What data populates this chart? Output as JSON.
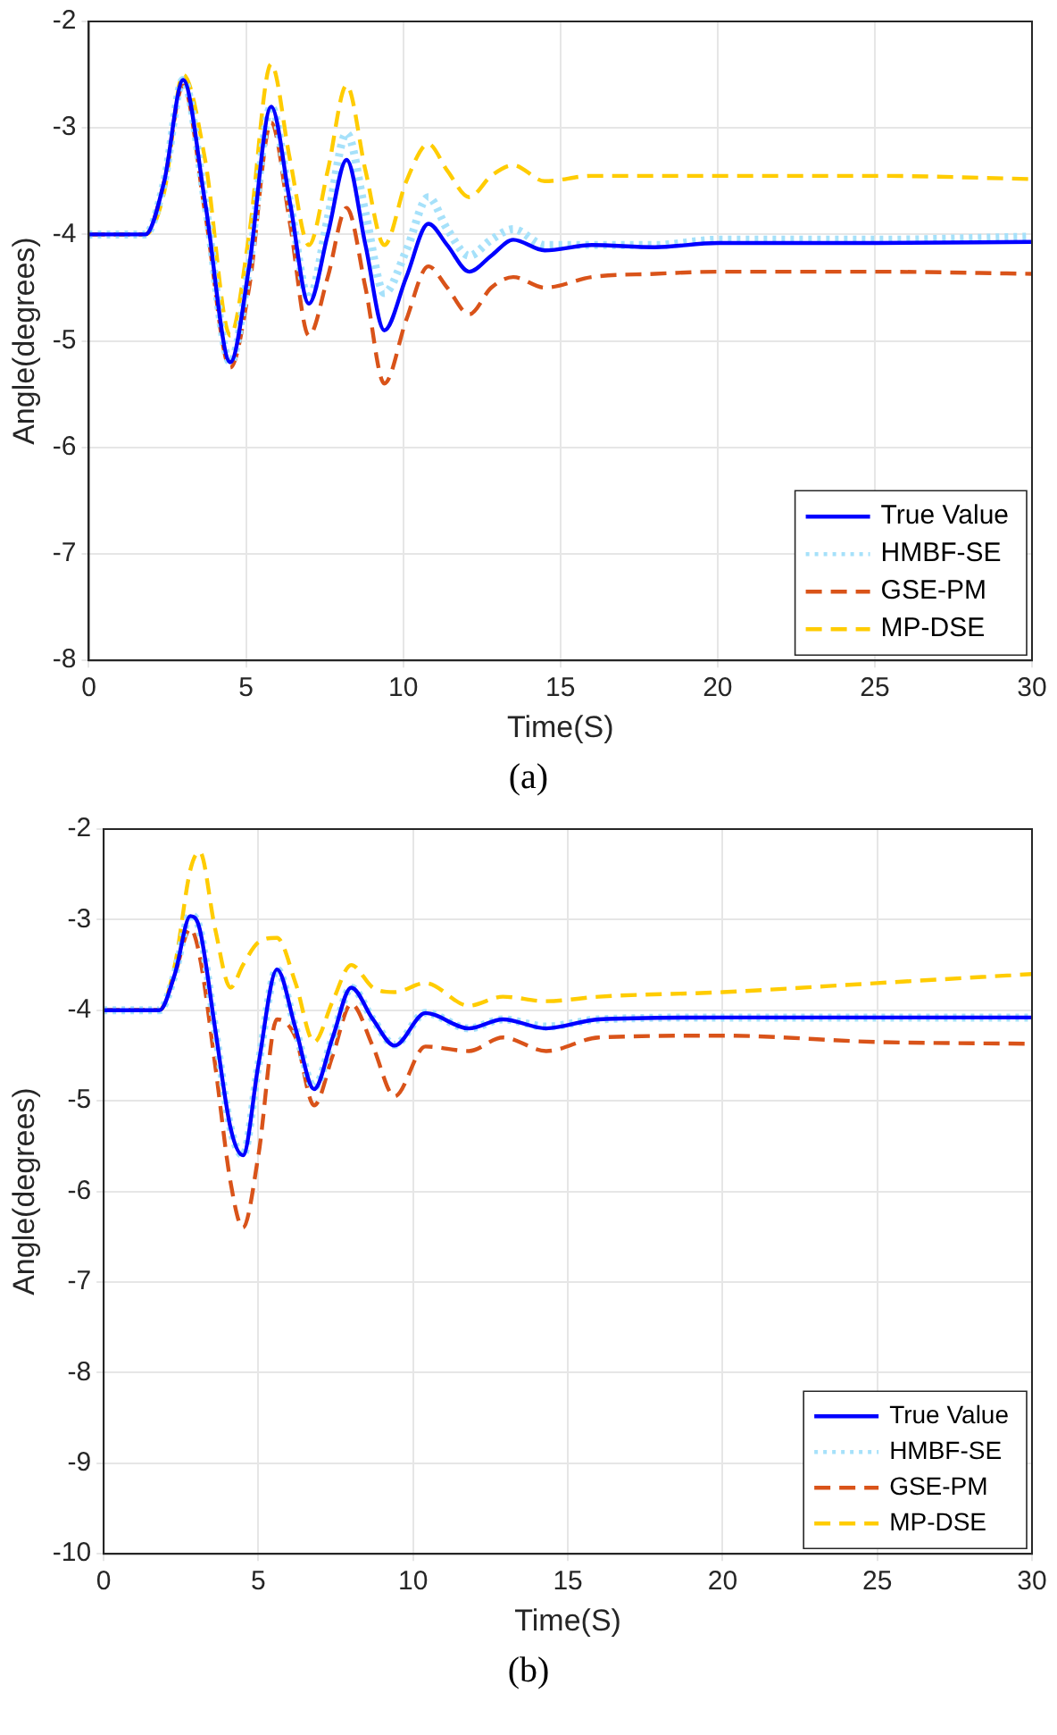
{
  "chart_data": [
    {
      "type": "line",
      "xlabel": "Time(S)",
      "ylabel": "Angle(degrees)",
      "annotations": [
        "(a)"
      ],
      "xlim": [
        0,
        30
      ],
      "xticks": [
        0,
        5,
        10,
        15,
        20,
        25,
        30
      ],
      "ylim": [
        -8,
        -2
      ],
      "yticks": [
        -8,
        -7,
        -6,
        -5,
        -4,
        -3,
        -2
      ],
      "grid": true,
      "legend": "bottom right",
      "marker": "none",
      "x": [
        0,
        1.8,
        2.4,
        3.0,
        3.7,
        4.5,
        5.1,
        5.8,
        6.4,
        7.0,
        7.6,
        8.2,
        8.8,
        9.4,
        10.1,
        10.8,
        11.4,
        12.1,
        12.8,
        13.5,
        14.5,
        16,
        18,
        20,
        25,
        30
      ],
      "series": [
        {
          "name": "True Value",
          "color": "#0000ff",
          "line_style": "solid",
          "values": [
            -4,
            -4,
            -3.5,
            -2.55,
            -3.7,
            -5.2,
            -4.3,
            -2.8,
            -3.7,
            -4.65,
            -4.0,
            -3.3,
            -4.1,
            -4.9,
            -4.4,
            -3.9,
            -4.1,
            -4.35,
            -4.2,
            -4.05,
            -4.15,
            -4.1,
            -4.12,
            -4.08,
            -4.08,
            -4.07
          ]
        },
        {
          "name": "HMBF-SE",
          "color": "#a6e1fa",
          "line_style": "dotted",
          "values": [
            -4,
            -4,
            -3.5,
            -2.55,
            -3.7,
            -5.2,
            -4.3,
            -2.8,
            -3.7,
            -4.6,
            -3.85,
            -3.05,
            -3.8,
            -4.55,
            -4.15,
            -3.65,
            -3.95,
            -4.2,
            -4.05,
            -3.95,
            -4.1,
            -4.1,
            -4.1,
            -4.05,
            -4.05,
            -4.02
          ]
        },
        {
          "name": "GSE-PM",
          "color": "#d95319",
          "line_style": "dashed",
          "values": [
            -4,
            -4,
            -3.5,
            -2.6,
            -3.8,
            -5.25,
            -4.5,
            -2.95,
            -3.9,
            -4.95,
            -4.4,
            -3.75,
            -4.5,
            -5.4,
            -4.8,
            -4.3,
            -4.5,
            -4.75,
            -4.5,
            -4.4,
            -4.5,
            -4.4,
            -4.37,
            -4.35,
            -4.35,
            -4.37
          ]
        },
        {
          "name": "MP-DSE",
          "color": "#ffcc00",
          "line_style": "dashed",
          "values": [
            -4,
            -4,
            -3.6,
            -2.5,
            -3.3,
            -4.95,
            -4.0,
            -2.4,
            -3.3,
            -4.1,
            -3.4,
            -2.6,
            -3.4,
            -4.1,
            -3.5,
            -3.15,
            -3.4,
            -3.65,
            -3.45,
            -3.35,
            -3.5,
            -3.45,
            -3.45,
            -3.45,
            -3.45,
            -3.48
          ]
        }
      ]
    },
    {
      "type": "line",
      "xlabel": "Time(S)",
      "ylabel": "Angle(degrees)",
      "annotations": [
        "(b)"
      ],
      "xlim": [
        0,
        30
      ],
      "xticks": [
        0,
        5,
        10,
        15,
        20,
        25,
        30
      ],
      "ylim": [
        -10,
        -2
      ],
      "yticks": [
        -10,
        -9,
        -8,
        -7,
        -6,
        -5,
        -4,
        -3,
        -2
      ],
      "grid": true,
      "legend": "bottom right",
      "marker": "none",
      "x": [
        0,
        1.8,
        2.3,
        2.8,
        3.1,
        3.6,
        4.1,
        4.5,
        5.0,
        5.6,
        6.2,
        6.8,
        7.4,
        8.0,
        8.7,
        9.4,
        10.4,
        11.8,
        12.9,
        14.3,
        16,
        20,
        25,
        30
      ],
      "series": [
        {
          "name": "True Value",
          "color": "#0000ff",
          "line_style": "solid",
          "values": [
            -4,
            -4,
            -3.6,
            -2.96,
            -3.1,
            -4.2,
            -5.3,
            -5.6,
            -4.6,
            -3.55,
            -4.2,
            -4.87,
            -4.3,
            -3.75,
            -4.1,
            -4.39,
            -4.03,
            -4.2,
            -4.1,
            -4.2,
            -4.1,
            -4.08,
            -4.08,
            -4.08
          ]
        },
        {
          "name": "HMBF-SE",
          "color": "#a6e1fa",
          "line_style": "dotted",
          "values": [
            -4,
            -4,
            -3.6,
            -2.95,
            -3.1,
            -4.2,
            -5.3,
            -5.6,
            -4.6,
            -3.55,
            -4.2,
            -4.85,
            -4.3,
            -3.75,
            -4.1,
            -4.38,
            -4.03,
            -4.2,
            -4.1,
            -4.18,
            -4.1,
            -4.08,
            -4.08,
            -4.08
          ]
        },
        {
          "name": "GSE-PM",
          "color": "#d95319",
          "line_style": "dashed",
          "values": [
            -4,
            -4,
            -3.6,
            -3.1,
            -3.4,
            -4.6,
            -5.9,
            -6.4,
            -5.6,
            -4.1,
            -4.3,
            -5.05,
            -4.5,
            -3.93,
            -4.4,
            -4.95,
            -4.4,
            -4.45,
            -4.3,
            -4.45,
            -4.3,
            -4.28,
            -4.35,
            -4.37
          ]
        },
        {
          "name": "MP-DSE",
          "color": "#ffcc00",
          "line_style": "dashed",
          "values": [
            -4,
            -4,
            -3.5,
            -2.45,
            -2.25,
            -3.1,
            -3.75,
            -3.5,
            -3.25,
            -3.2,
            -3.7,
            -4.35,
            -3.9,
            -3.5,
            -3.75,
            -3.8,
            -3.7,
            -3.95,
            -3.85,
            -3.9,
            -3.85,
            -3.8,
            -3.7,
            -3.6
          ]
        }
      ]
    }
  ]
}
